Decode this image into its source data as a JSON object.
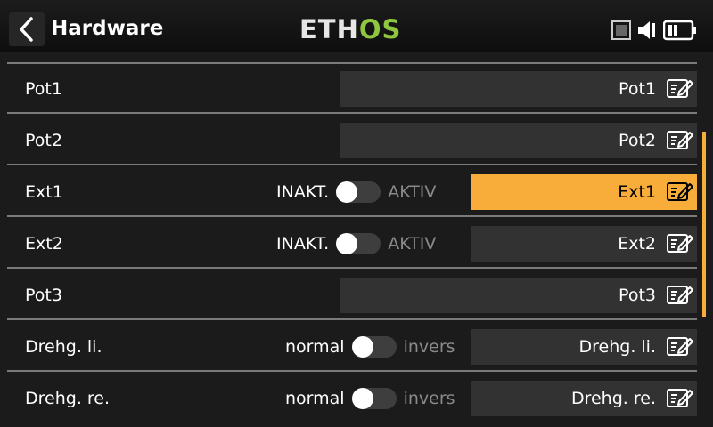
{
  "header": {
    "title": "Hardware",
    "logo_main": "ETH",
    "logo_accent": "OS",
    "accent_color": "#8fc63f",
    "highlight_color": "#f8ad3b"
  },
  "rows": [
    {
      "label": "Pot1",
      "value": "Pot1"
    },
    {
      "label": "Pot2",
      "value": "Pot2"
    },
    {
      "label": "Ext1",
      "value": "Ext1",
      "switch_left": "INAKT.",
      "switch_right": "AKTIV"
    },
    {
      "label": "Ext2",
      "value": "Ext2",
      "switch_left": "INAKT.",
      "switch_right": "AKTIV"
    },
    {
      "label": "Pot3",
      "value": "Pot3"
    },
    {
      "label": "Drehg. li.",
      "value": "Drehg. li.",
      "switch_left": "normal",
      "switch_right": "invers"
    },
    {
      "label": "Drehg. re.",
      "value": "Drehg. re.",
      "switch_left": "normal",
      "switch_right": "invers"
    }
  ]
}
